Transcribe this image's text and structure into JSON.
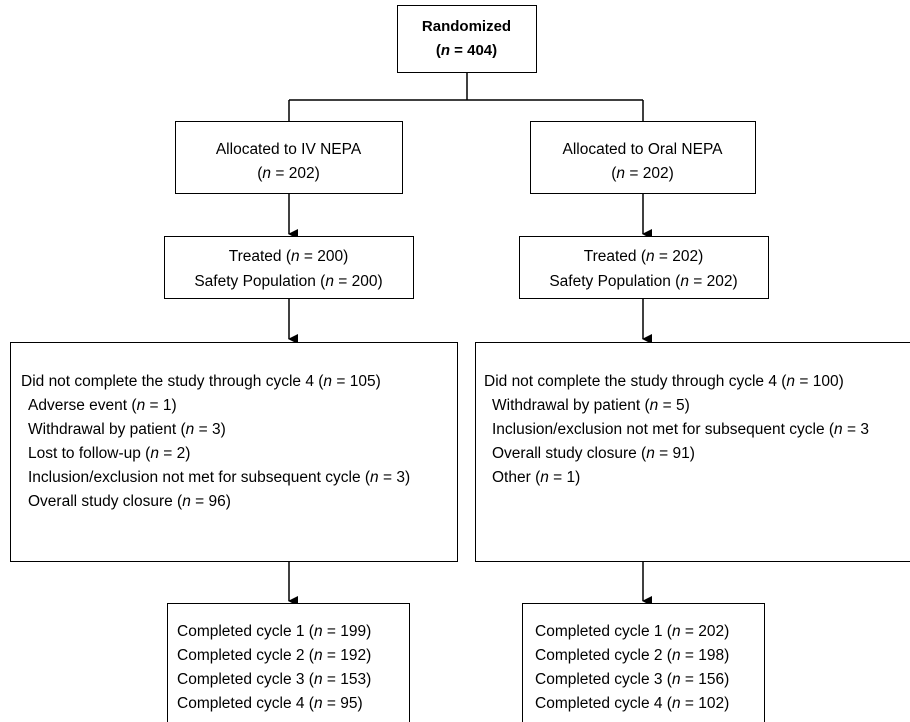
{
  "randomized": {
    "title": "Randomized",
    "n": "(n = 404)"
  },
  "iv": {
    "allocated": {
      "line1": "Allocated to IV NEPA",
      "line2": "(n = 202)"
    },
    "treated": {
      "line1": "Treated (n = 200)",
      "line2": "Safety Population (n = 200)"
    },
    "discontinued": {
      "heading": "Did not complete the study through cycle 4 (n = 105)",
      "reasons": [
        "Adverse event (n = 1)",
        "Withdrawal by patient (n = 3)",
        "Lost to follow-up (n = 2)",
        "Inclusion/exclusion not met for subsequent cycle (n = 3)",
        "Overall study closure (n = 96)"
      ]
    },
    "completed": [
      "Completed cycle 1 (n = 199)",
      "Completed cycle 2 (n = 192)",
      "Completed cycle 3 (n = 153)",
      "Completed cycle 4 (n = 95)"
    ]
  },
  "oral": {
    "allocated": {
      "line1": "Allocated to Oral NEPA",
      "line2": "(n = 202)"
    },
    "treated": {
      "line1": "Treated (n = 202)",
      "line2": "Safety Population (n = 202)"
    },
    "discontinued": {
      "heading": "Did not complete the study through cycle 4 (n = 100)",
      "reasons": [
        "Withdrawal by patient (n = 5)",
        "Inclusion/exclusion not met for subsequent cycle (n = 3",
        "Overall study closure (n = 91)",
        "Other (n = 1)"
      ]
    },
    "completed": [
      "Completed cycle 1 (n = 202)",
      "Completed cycle 2 (n = 198)",
      "Completed cycle 3 (n = 156)",
      "Completed cycle 4 (n = 102)"
    ]
  }
}
